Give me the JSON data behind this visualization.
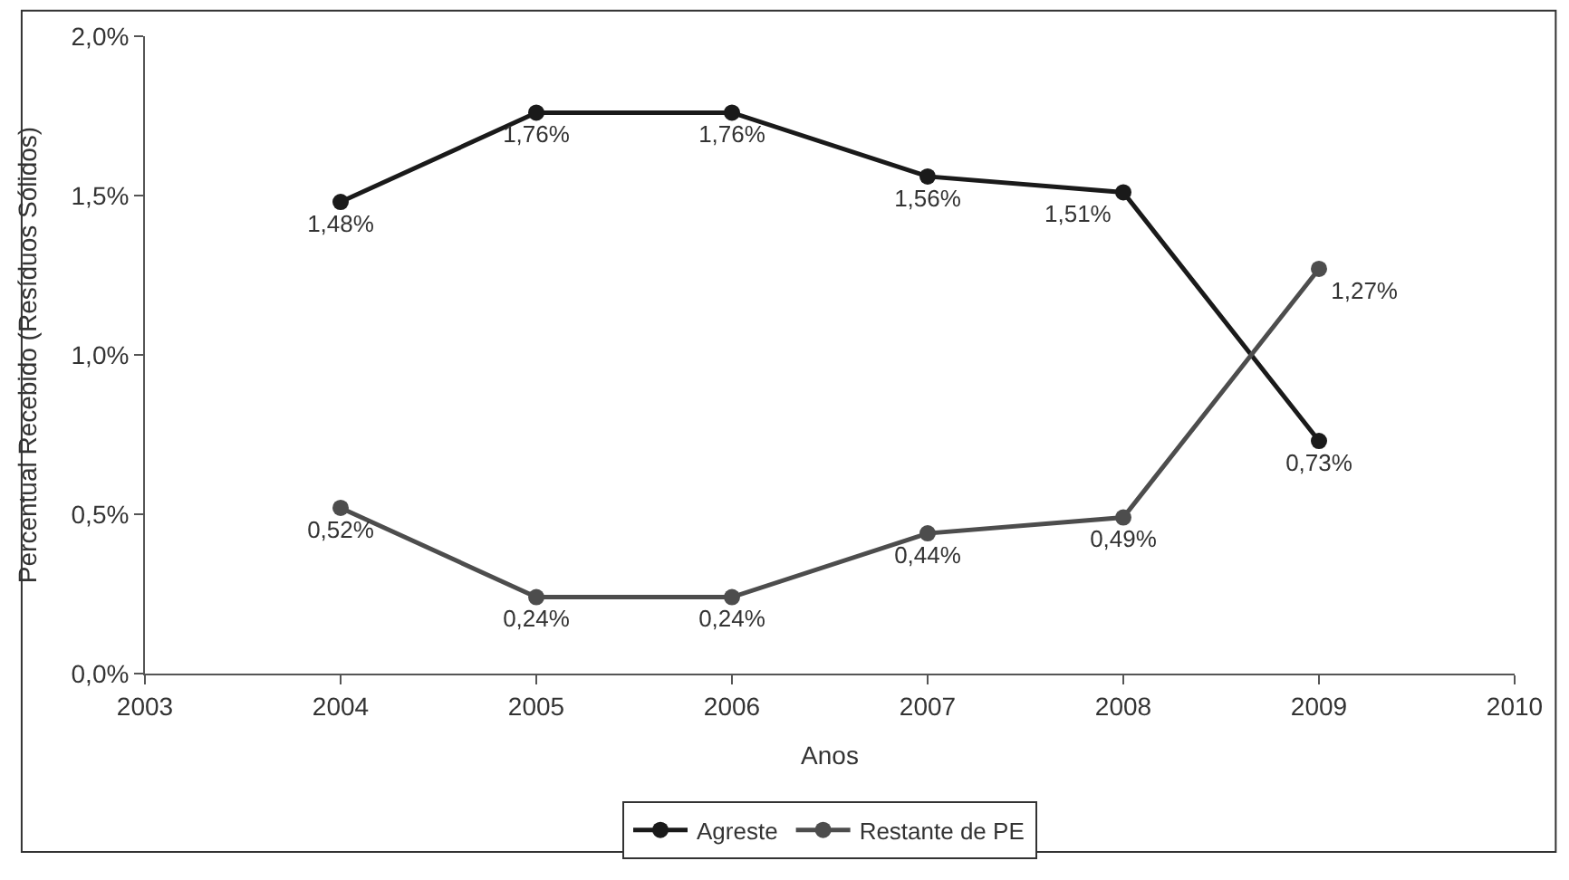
{
  "chart_data": {
    "type": "line",
    "xlabel": "Anos",
    "ylabel": "Percentual Recebido (Resíduos Sólidos)",
    "x": [
      2004,
      2005,
      2006,
      2007,
      2008,
      2009
    ],
    "series": [
      {
        "name": "Agreste",
        "color": "#1a1a1a",
        "values": [
          1.48,
          1.76,
          1.76,
          1.56,
          1.51,
          0.73
        ],
        "value_labels": [
          "1,48%",
          "1,76%",
          "1,76%",
          "1,56%",
          "1,51%",
          "0,73%"
        ]
      },
      {
        "name": "Restante de PE",
        "color": "#4d4d4d",
        "values": [
          0.52,
          0.24,
          0.24,
          0.44,
          0.49,
          1.27
        ],
        "value_labels": [
          "0,52%",
          "0,24%",
          "0,24%",
          "0,44%",
          "0,49%",
          "1,27%"
        ]
      }
    ],
    "xlim": [
      2003,
      2010
    ],
    "xticks": [
      2003,
      2004,
      2005,
      2006,
      2007,
      2008,
      2009,
      2010
    ],
    "ylim": [
      0,
      2
    ],
    "yticks": [
      {
        "value": 0,
        "label": "0,0%"
      },
      {
        "value": 0.5,
        "label": "0,5%"
      },
      {
        "value": 1,
        "label": "1,0%"
      },
      {
        "value": 1.5,
        "label": "1,5%"
      },
      {
        "value": 2,
        "label": "2,0%"
      }
    ],
    "legend": "bottom",
    "marker": "circle",
    "line_style": "solid"
  }
}
